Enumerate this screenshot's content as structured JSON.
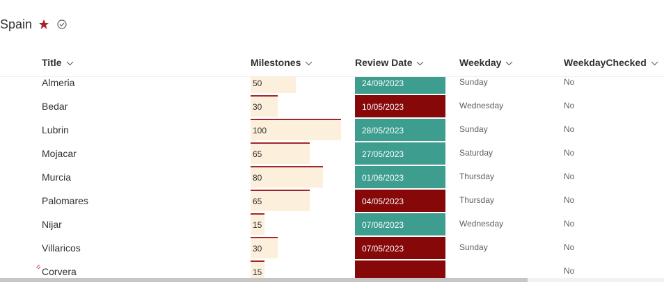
{
  "header": {
    "title": "Spain"
  },
  "table": {
    "columns": [
      "Title",
      "Milestones",
      "Review Date",
      "Weekday",
      "WeekdayChecked"
    ],
    "rows": [
      {
        "title": "Almeria",
        "milestones": 50,
        "review_date": "24/09/2023",
        "date_color": "#3d9e8f",
        "weekday": "Sunday",
        "weekday_checked": "No"
      },
      {
        "title": "Bedar",
        "milestones": 30,
        "review_date": "10/05/2023",
        "date_color": "#860808",
        "weekday": "Wednesday",
        "weekday_checked": "No"
      },
      {
        "title": "Lubrin",
        "milestones": 100,
        "review_date": "28/05/2023",
        "date_color": "#3d9e8f",
        "weekday": "Sunday",
        "weekday_checked": "No"
      },
      {
        "title": "Mojacar",
        "milestones": 65,
        "review_date": "27/05/2023",
        "date_color": "#3d9e8f",
        "weekday": "Saturday",
        "weekday_checked": "No"
      },
      {
        "title": "Murcia",
        "milestones": 80,
        "review_date": "01/06/2023",
        "date_color": "#3d9e8f",
        "weekday": "Thursday",
        "weekday_checked": "No"
      },
      {
        "title": "Palomares",
        "milestones": 65,
        "review_date": "04/05/2023",
        "date_color": "#860808",
        "weekday": "Thursday",
        "weekday_checked": "No"
      },
      {
        "title": "Nijar",
        "milestones": 15,
        "review_date": "07/06/2023",
        "date_color": "#3d9e8f",
        "weekday": "Wednesday",
        "weekday_checked": "No"
      },
      {
        "title": "Villaricos",
        "milestones": 30,
        "review_date": "07/05/2023",
        "date_color": "#860808",
        "weekday": "Sunday",
        "weekday_checked": "No"
      },
      {
        "title": "Corvera",
        "milestones": 15,
        "review_date": null,
        "date_color": "#860808",
        "weekday": null,
        "weekday_checked": "No"
      }
    ]
  }
}
